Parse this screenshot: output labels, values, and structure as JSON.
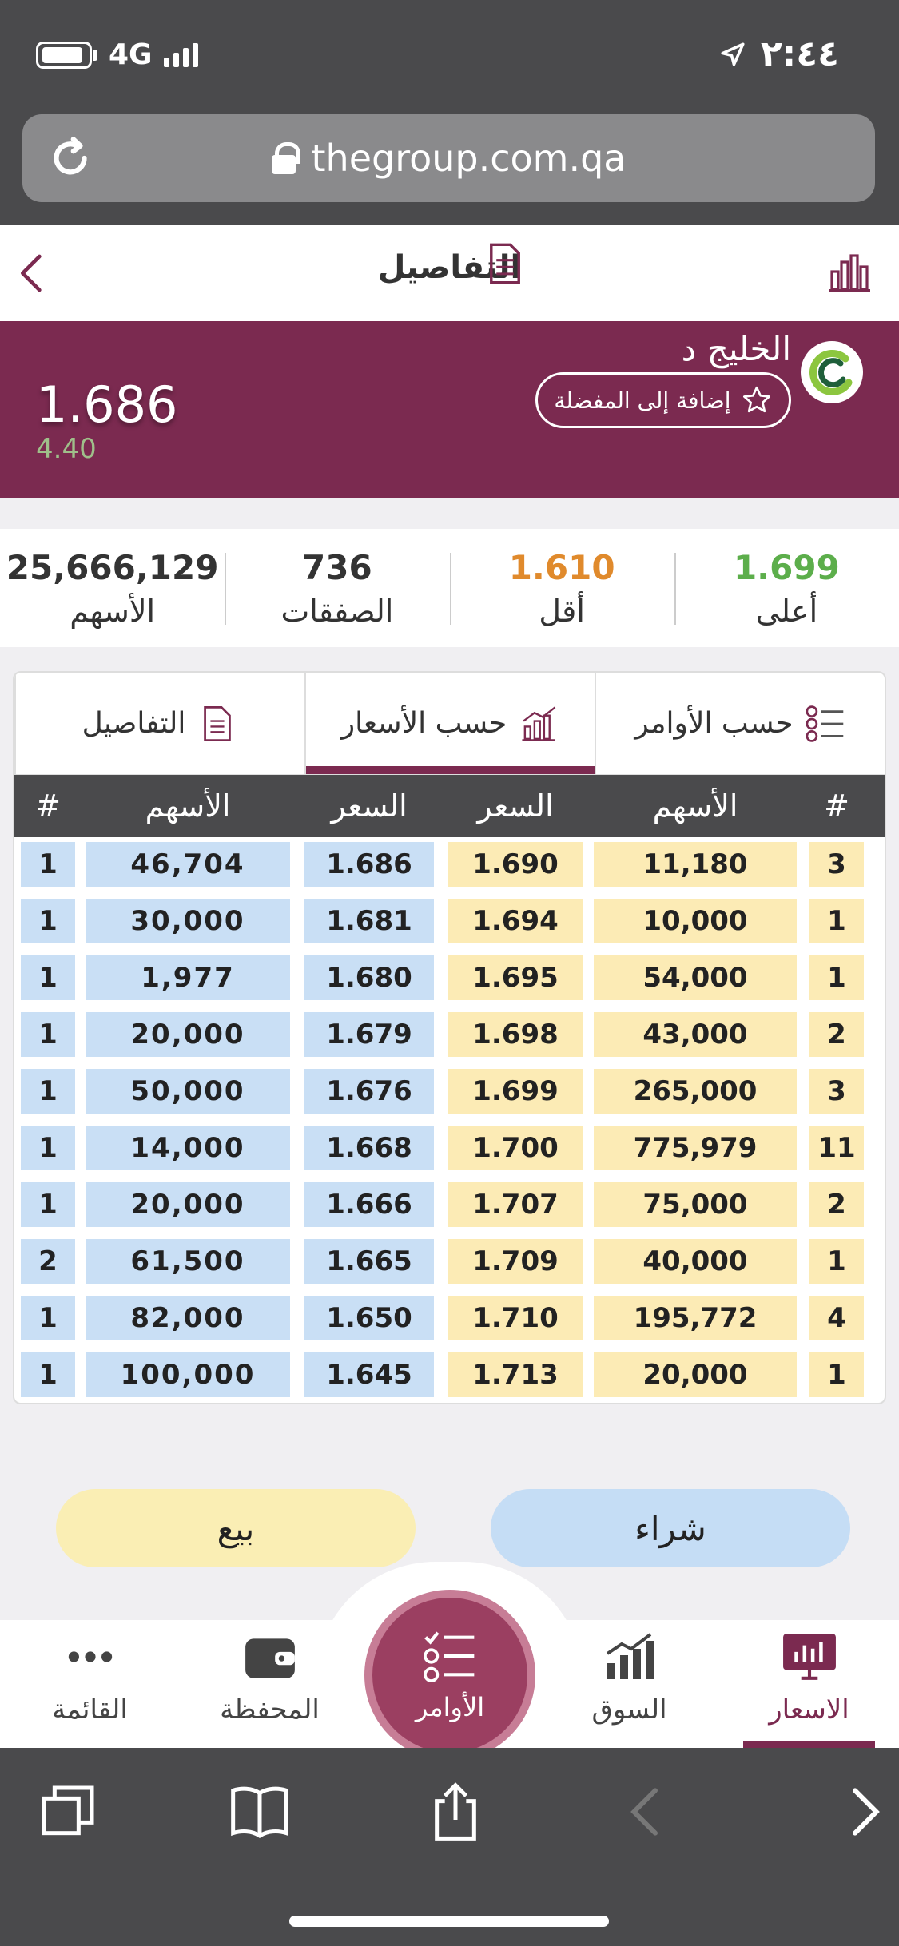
{
  "status_bar": {
    "network": "4G",
    "time": "٢:٤٤"
  },
  "browser": {
    "url": "thegroup.com.qa"
  },
  "header": {
    "title": "التفاصيل"
  },
  "stock": {
    "name": "الخليج د",
    "favorite_label": "إضافة إلى المفضلة",
    "price": "1.686",
    "change": "4.40",
    "change_color": "#9fbf8a"
  },
  "stats": [
    {
      "value": "1.699",
      "label": "أعلى",
      "color": "#5cae4b"
    },
    {
      "value": "1.610",
      "label": "أقل",
      "color": "#e08a2c"
    },
    {
      "value": "736",
      "label": "الصفقات",
      "color": "#333333"
    },
    {
      "value": "25,666,129",
      "label": "الأسهم",
      "color": "#333333"
    }
  ],
  "tabs": [
    {
      "label": "حسب الأوامر",
      "icon": "list-icon"
    },
    {
      "label": "حسب الأسعار",
      "icon": "chart-icon"
    },
    {
      "label": "التفاصيل",
      "icon": "document-icon"
    }
  ],
  "order_book": {
    "headers": {
      "ask_count": "#",
      "ask_qty": "الأسهم",
      "ask_price": "السعر",
      "bid_price": "السعر",
      "bid_qty": "الأسهم",
      "bid_count": "#"
    },
    "rows": [
      {
        "bid_count": "1",
        "bid_qty": "46,704",
        "bid_price": "1.686",
        "ask_price": "1.690",
        "ask_qty": "11,180",
        "ask_count": "3"
      },
      {
        "bid_count": "1",
        "bid_qty": "30,000",
        "bid_price": "1.681",
        "ask_price": "1.694",
        "ask_qty": "10,000",
        "ask_count": "1"
      },
      {
        "bid_count": "1",
        "bid_qty": "1,977",
        "bid_price": "1.680",
        "ask_price": "1.695",
        "ask_qty": "54,000",
        "ask_count": "1"
      },
      {
        "bid_count": "1",
        "bid_qty": "20,000",
        "bid_price": "1.679",
        "ask_price": "1.698",
        "ask_qty": "43,000",
        "ask_count": "2"
      },
      {
        "bid_count": "1",
        "bid_qty": "50,000",
        "bid_price": "1.676",
        "ask_price": "1.699",
        "ask_qty": "265,000",
        "ask_count": "3"
      },
      {
        "bid_count": "1",
        "bid_qty": "14,000",
        "bid_price": "1.668",
        "ask_price": "1.700",
        "ask_qty": "775,979",
        "ask_count": "11"
      },
      {
        "bid_count": "1",
        "bid_qty": "20,000",
        "bid_price": "1.666",
        "ask_price": "1.707",
        "ask_qty": "75,000",
        "ask_count": "2"
      },
      {
        "bid_count": "2",
        "bid_qty": "61,500",
        "bid_price": "1.665",
        "ask_price": "1.709",
        "ask_qty": "40,000",
        "ask_count": "1"
      },
      {
        "bid_count": "1",
        "bid_qty": "82,000",
        "bid_price": "1.650",
        "ask_price": "1.710",
        "ask_qty": "195,772",
        "ask_count": "4"
      },
      {
        "bid_count": "1",
        "bid_qty": "100,000",
        "bid_price": "1.645",
        "ask_price": "1.713",
        "ask_qty": "20,000",
        "ask_count": "1"
      }
    ]
  },
  "actions": {
    "sell": "بيع",
    "buy": "شراء"
  },
  "nav": [
    {
      "label": "الاسعار",
      "icon": "prices-icon",
      "active": true
    },
    {
      "label": "السوق",
      "icon": "market-icon"
    },
    {
      "label": "الأوامر",
      "icon": "orders-icon"
    },
    {
      "label": "المحفظة",
      "icon": "wallet-icon"
    },
    {
      "label": "القائمة",
      "icon": "more-icon"
    }
  ],
  "colors": {
    "brand": "#7b2a50",
    "bid": "#c9dff5",
    "ask": "#fcebb5",
    "header_dark": "#4a4a4c"
  }
}
